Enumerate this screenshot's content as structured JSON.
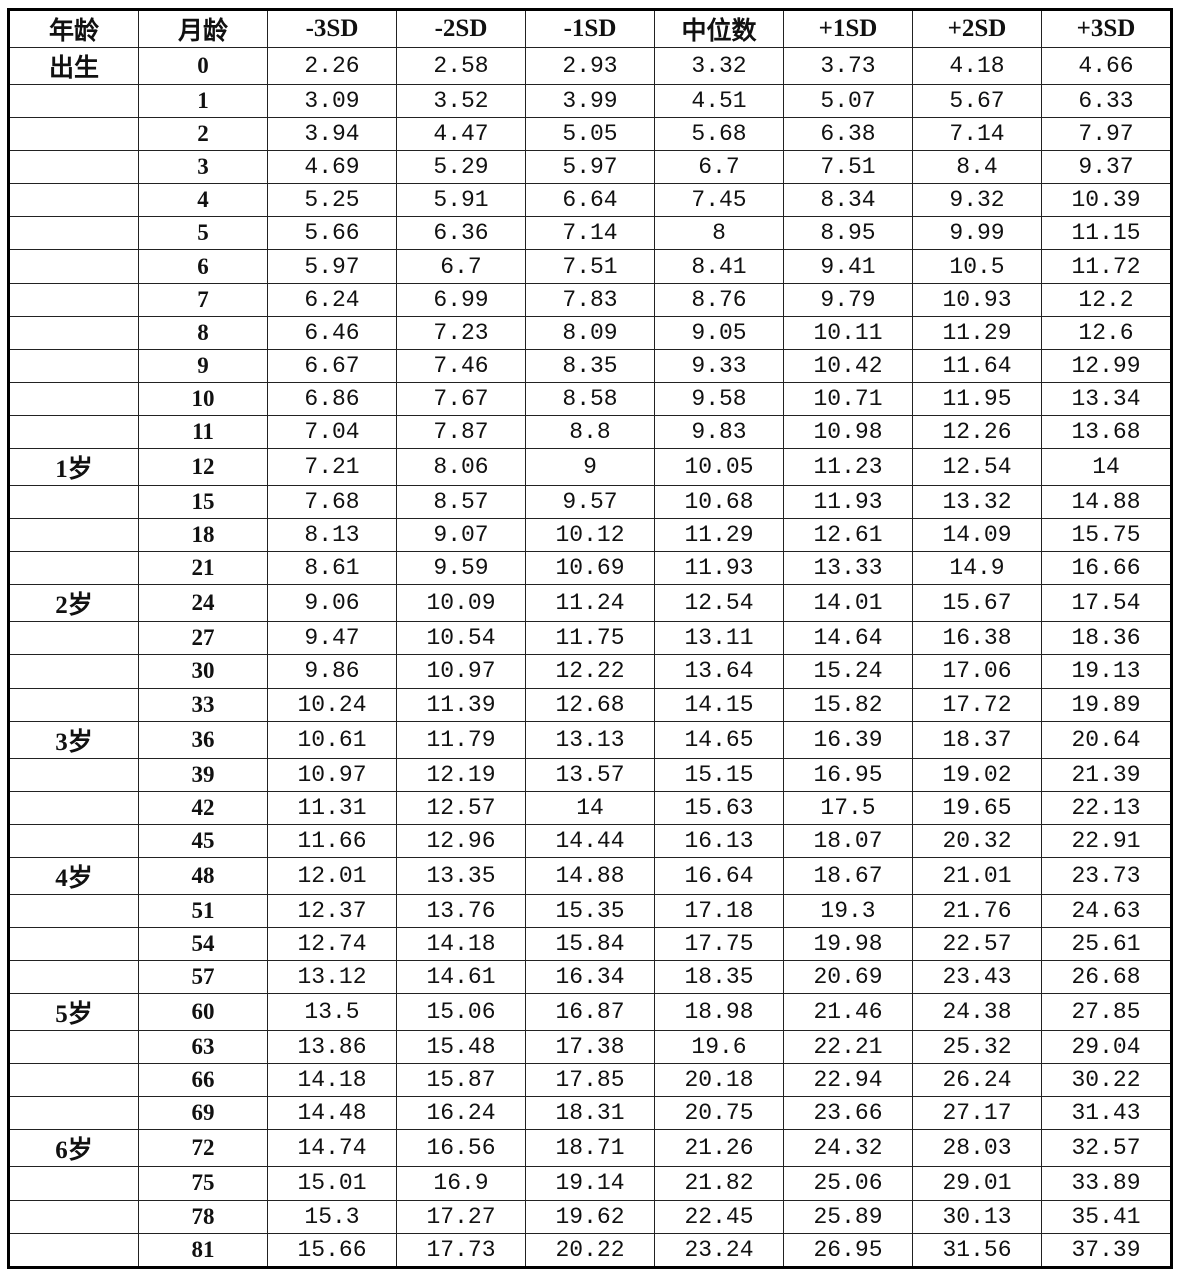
{
  "headers": [
    "年龄",
    "月龄",
    "-3SD",
    "-2SD",
    "-1SD",
    "中位数",
    "+1SD",
    "+2SD",
    "+3SD"
  ],
  "rows": [
    {
      "age": "出生",
      "month": "0",
      "values": [
        "2.26",
        "2.58",
        "2.93",
        "3.32",
        "3.73",
        "4.18",
        "4.66"
      ]
    },
    {
      "age": "",
      "month": "1",
      "values": [
        "3.09",
        "3.52",
        "3.99",
        "4.51",
        "5.07",
        "5.67",
        "6.33"
      ]
    },
    {
      "age": "",
      "month": "2",
      "values": [
        "3.94",
        "4.47",
        "5.05",
        "5.68",
        "6.38",
        "7.14",
        "7.97"
      ]
    },
    {
      "age": "",
      "month": "3",
      "values": [
        "4.69",
        "5.29",
        "5.97",
        "6.7",
        "7.51",
        "8.4",
        "9.37"
      ]
    },
    {
      "age": "",
      "month": "4",
      "values": [
        "5.25",
        "5.91",
        "6.64",
        "7.45",
        "8.34",
        "9.32",
        "10.39"
      ]
    },
    {
      "age": "",
      "month": "5",
      "values": [
        "5.66",
        "6.36",
        "7.14",
        "8",
        "8.95",
        "9.99",
        "11.15"
      ]
    },
    {
      "age": "",
      "month": "6",
      "values": [
        "5.97",
        "6.7",
        "7.51",
        "8.41",
        "9.41",
        "10.5",
        "11.72"
      ]
    },
    {
      "age": "",
      "month": "7",
      "values": [
        "6.24",
        "6.99",
        "7.83",
        "8.76",
        "9.79",
        "10.93",
        "12.2"
      ]
    },
    {
      "age": "",
      "month": "8",
      "values": [
        "6.46",
        "7.23",
        "8.09",
        "9.05",
        "10.11",
        "11.29",
        "12.6"
      ]
    },
    {
      "age": "",
      "month": "9",
      "values": [
        "6.67",
        "7.46",
        "8.35",
        "9.33",
        "10.42",
        "11.64",
        "12.99"
      ]
    },
    {
      "age": "",
      "month": "10",
      "values": [
        "6.86",
        "7.67",
        "8.58",
        "9.58",
        "10.71",
        "11.95",
        "13.34"
      ]
    },
    {
      "age": "",
      "month": "11",
      "values": [
        "7.04",
        "7.87",
        "8.8",
        "9.83",
        "10.98",
        "12.26",
        "13.68"
      ]
    },
    {
      "age": "1岁",
      "month": "12",
      "values": [
        "7.21",
        "8.06",
        "9",
        "10.05",
        "11.23",
        "12.54",
        "14"
      ]
    },
    {
      "age": "",
      "month": "15",
      "values": [
        "7.68",
        "8.57",
        "9.57",
        "10.68",
        "11.93",
        "13.32",
        "14.88"
      ]
    },
    {
      "age": "",
      "month": "18",
      "values": [
        "8.13",
        "9.07",
        "10.12",
        "11.29",
        "12.61",
        "14.09",
        "15.75"
      ]
    },
    {
      "age": "",
      "month": "21",
      "values": [
        "8.61",
        "9.59",
        "10.69",
        "11.93",
        "13.33",
        "14.9",
        "16.66"
      ]
    },
    {
      "age": "2岁",
      "month": "24",
      "values": [
        "9.06",
        "10.09",
        "11.24",
        "12.54",
        "14.01",
        "15.67",
        "17.54"
      ]
    },
    {
      "age": "",
      "month": "27",
      "values": [
        "9.47",
        "10.54",
        "11.75",
        "13.11",
        "14.64",
        "16.38",
        "18.36"
      ]
    },
    {
      "age": "",
      "month": "30",
      "values": [
        "9.86",
        "10.97",
        "12.22",
        "13.64",
        "15.24",
        "17.06",
        "19.13"
      ]
    },
    {
      "age": "",
      "month": "33",
      "values": [
        "10.24",
        "11.39",
        "12.68",
        "14.15",
        "15.82",
        "17.72",
        "19.89"
      ]
    },
    {
      "age": "3岁",
      "month": "36",
      "values": [
        "10.61",
        "11.79",
        "13.13",
        "14.65",
        "16.39",
        "18.37",
        "20.64"
      ]
    },
    {
      "age": "",
      "month": "39",
      "values": [
        "10.97",
        "12.19",
        "13.57",
        "15.15",
        "16.95",
        "19.02",
        "21.39"
      ]
    },
    {
      "age": "",
      "month": "42",
      "values": [
        "11.31",
        "12.57",
        "14",
        "15.63",
        "17.5",
        "19.65",
        "22.13"
      ]
    },
    {
      "age": "",
      "month": "45",
      "values": [
        "11.66",
        "12.96",
        "14.44",
        "16.13",
        "18.07",
        "20.32",
        "22.91"
      ]
    },
    {
      "age": "4岁",
      "month": "48",
      "values": [
        "12.01",
        "13.35",
        "14.88",
        "16.64",
        "18.67",
        "21.01",
        "23.73"
      ]
    },
    {
      "age": "",
      "month": "51",
      "values": [
        "12.37",
        "13.76",
        "15.35",
        "17.18",
        "19.3",
        "21.76",
        "24.63"
      ]
    },
    {
      "age": "",
      "month": "54",
      "values": [
        "12.74",
        "14.18",
        "15.84",
        "17.75",
        "19.98",
        "22.57",
        "25.61"
      ]
    },
    {
      "age": "",
      "month": "57",
      "values": [
        "13.12",
        "14.61",
        "16.34",
        "18.35",
        "20.69",
        "23.43",
        "26.68"
      ]
    },
    {
      "age": "5岁",
      "month": "60",
      "values": [
        "13.5",
        "15.06",
        "16.87",
        "18.98",
        "21.46",
        "24.38",
        "27.85"
      ]
    },
    {
      "age": "",
      "month": "63",
      "values": [
        "13.86",
        "15.48",
        "17.38",
        "19.6",
        "22.21",
        "25.32",
        "29.04"
      ]
    },
    {
      "age": "",
      "month": "66",
      "values": [
        "14.18",
        "15.87",
        "17.85",
        "20.18",
        "22.94",
        "26.24",
        "30.22"
      ]
    },
    {
      "age": "",
      "month": "69",
      "values": [
        "14.48",
        "16.24",
        "18.31",
        "20.75",
        "23.66",
        "27.17",
        "31.43"
      ]
    },
    {
      "age": "6岁",
      "month": "72",
      "values": [
        "14.74",
        "16.56",
        "18.71",
        "21.26",
        "24.32",
        "28.03",
        "32.57"
      ]
    },
    {
      "age": "",
      "month": "75",
      "values": [
        "15.01",
        "16.9",
        "19.14",
        "21.82",
        "25.06",
        "29.01",
        "33.89"
      ]
    },
    {
      "age": "",
      "month": "78",
      "values": [
        "15.3",
        "17.27",
        "19.62",
        "22.45",
        "25.89",
        "30.13",
        "35.41"
      ]
    },
    {
      "age": "",
      "month": "81",
      "values": [
        "15.66",
        "17.73",
        "20.22",
        "23.24",
        "26.95",
        "31.56",
        "37.39"
      ]
    }
  ]
}
